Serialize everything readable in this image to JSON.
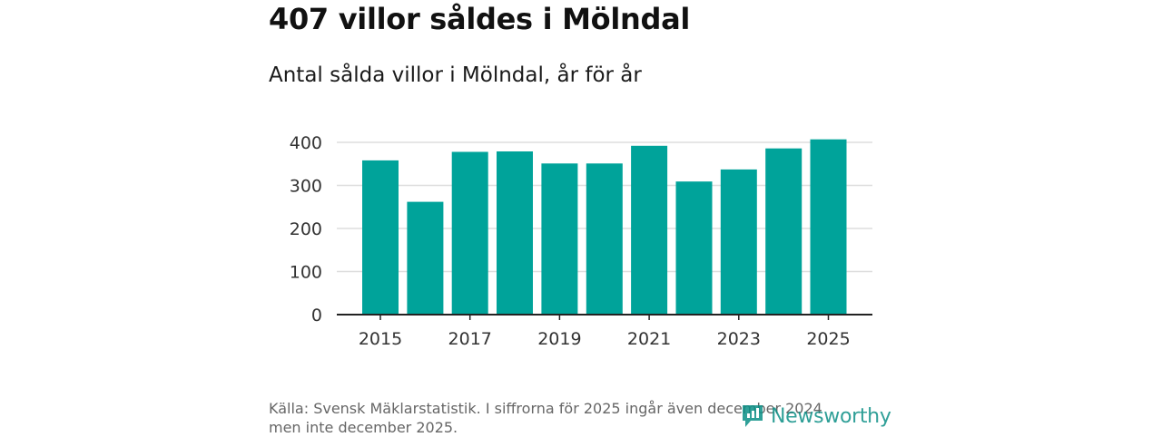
{
  "title": "407 villor såldes i Mölndal",
  "subtitle": "Antal sålda villor i Mölndal, år för år",
  "footer": {
    "line1": "Källa: Svensk Mäklarstatistik. I siffrorna för 2025 ingår även december 2024",
    "line2": "men inte december 2025."
  },
  "brand": {
    "name": "Newsworthy",
    "icon": "newsworthy-logo-icon"
  },
  "colors": {
    "bar": "#00a39a",
    "grid": "#dddddd",
    "axis": "#222222",
    "tick_text": "#333333",
    "brand": "#0b8f86"
  },
  "chart_data": {
    "type": "bar",
    "title": "Antal sålda villor i Mölndal, år för år",
    "xlabel": "",
    "ylabel": "",
    "categories": [
      "2015",
      "2016",
      "2017",
      "2018",
      "2019",
      "2020",
      "2021",
      "2022",
      "2023",
      "2024",
      "2025"
    ],
    "values": [
      358,
      262,
      378,
      379,
      351,
      351,
      392,
      309,
      337,
      386,
      407
    ],
    "ylim": [
      0,
      400
    ],
    "yticks": [
      0,
      100,
      200,
      300,
      400
    ],
    "xtick_labels": [
      "2015",
      "2017",
      "2019",
      "2021",
      "2023",
      "2025"
    ],
    "grid": true,
    "legend": "none"
  }
}
